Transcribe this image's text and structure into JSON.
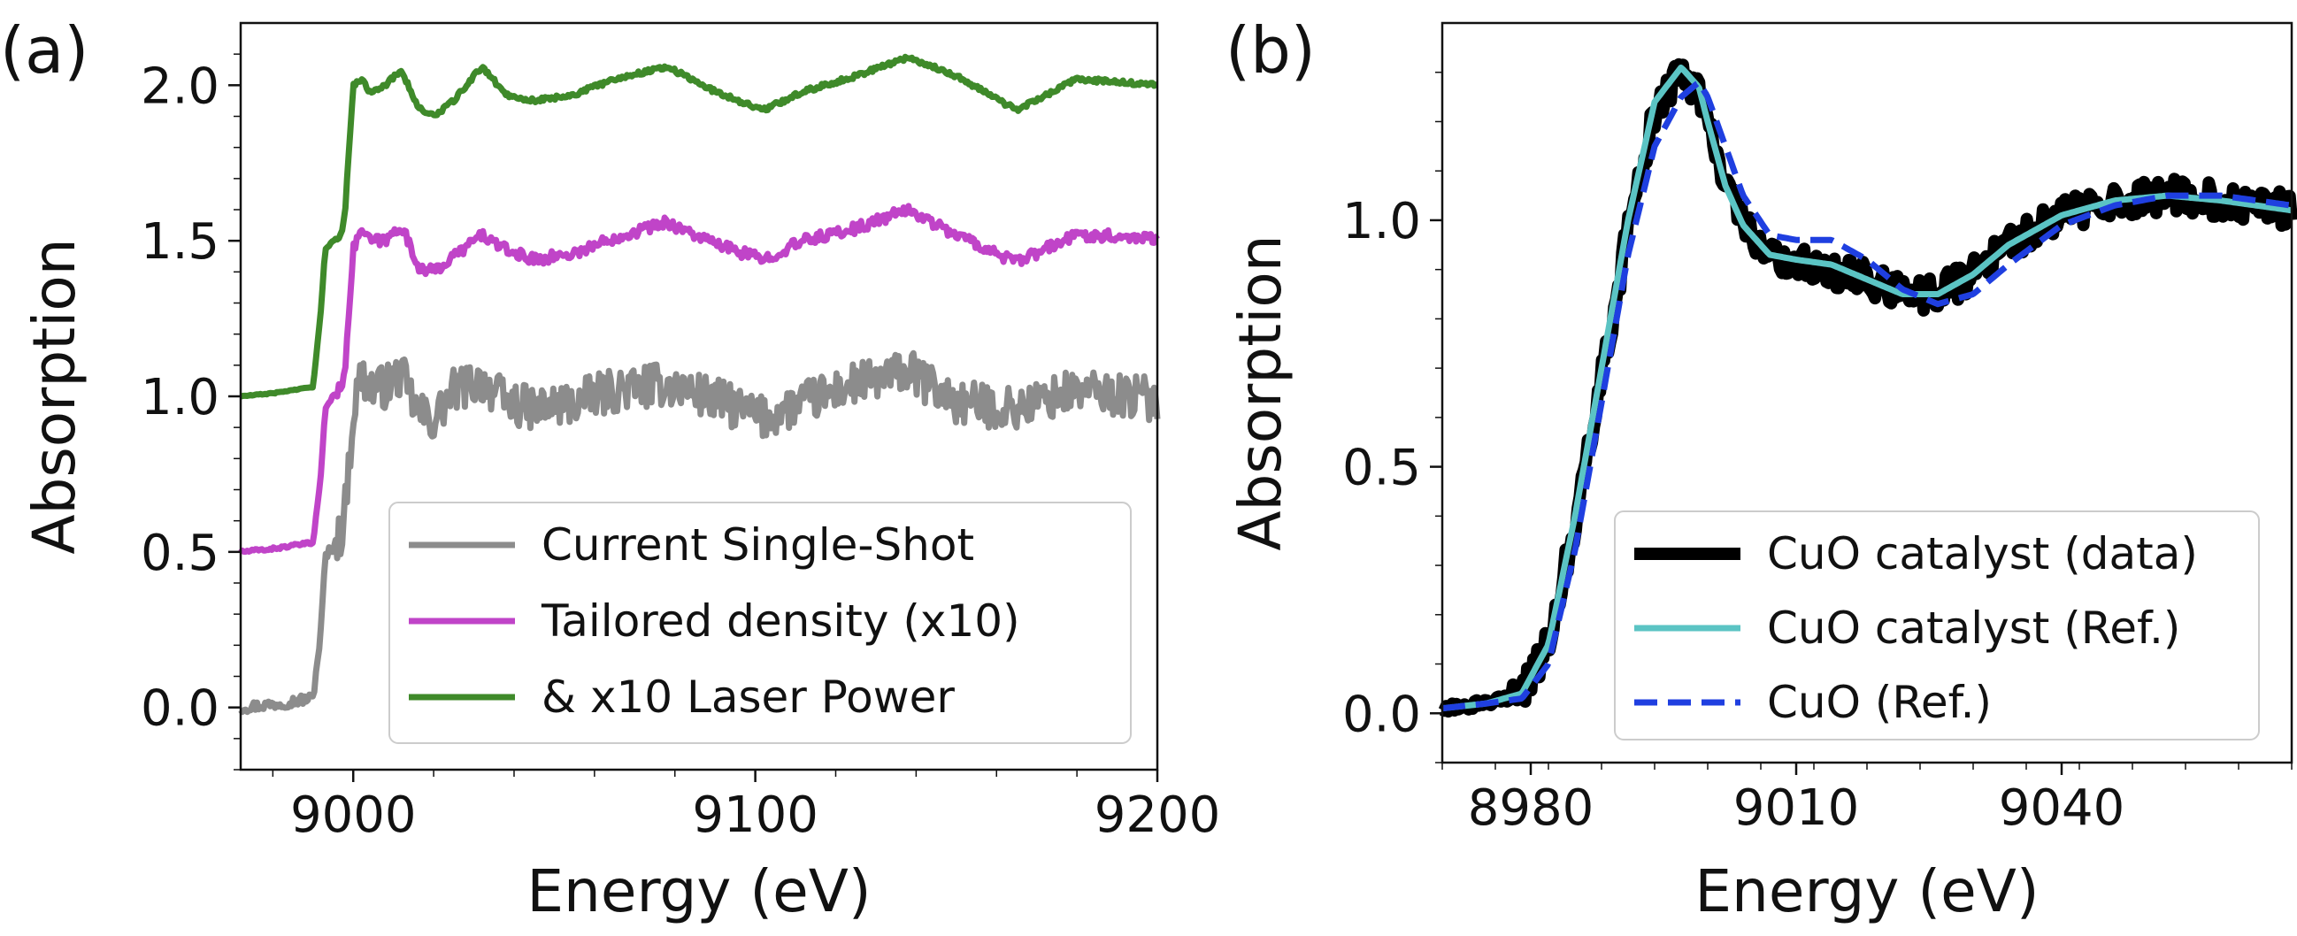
{
  "chart_data": [
    {
      "type": "line",
      "panel_label": "(a)",
      "xlabel": "Energy (eV)",
      "ylabel": "Absorption",
      "xlim": [
        8972,
        9200
      ],
      "ylim": [
        -0.2,
        2.2
      ],
      "xticks": [
        9000,
        9100,
        9200
      ],
      "xtick_labels": [
        "9000",
        "9100",
        "9200"
      ],
      "yticks": [
        0.0,
        0.5,
        1.0,
        1.5,
        2.0
      ],
      "ytick_labels": [
        "0.0",
        "0.5",
        "1.0",
        "1.5",
        "2.0"
      ],
      "legend_position": "lower-right",
      "colors": {
        "gray": "#8c8c8c",
        "magenta": "#c044c8",
        "green": "#3f8a2a"
      },
      "series": [
        {
          "name": "Current Single-Shot",
          "offset": 0.0,
          "noise": 0.07,
          "color": "#8c8c8c",
          "x": [
            8972,
            8980,
            8990,
            8992,
            8993,
            8995,
            8997,
            8998,
            9000,
            9002,
            9004,
            9008,
            9012,
            9016,
            9020,
            9025,
            9032,
            9038,
            9045,
            9055,
            9065,
            9078,
            9090,
            9102,
            9112,
            9125,
            9138,
            9150,
            9165,
            9180,
            9200
          ],
          "values": [
            0.0,
            0.01,
            0.03,
            0.25,
            0.48,
            0.52,
            0.56,
            0.64,
            0.95,
            1.07,
            1.03,
            1.03,
            1.07,
            0.95,
            0.92,
            1.02,
            1.05,
            0.98,
            0.96,
            0.98,
            1.02,
            1.04,
            0.99,
            0.93,
            0.98,
            1.04,
            1.08,
            0.98,
            0.96,
            1.02,
            0.99
          ]
        },
        {
          "name": "Tailored density (x10)",
          "offset": 0.5,
          "noise": 0.018,
          "color": "#c044c8",
          "x": [
            8972,
            8980,
            8990,
            8992,
            8993,
            8995,
            8997,
            8998,
            9000,
            9002,
            9004,
            9008,
            9012,
            9016,
            9020,
            9025,
            9032,
            9038,
            9045,
            9055,
            9065,
            9078,
            9090,
            9102,
            9112,
            9125,
            9138,
            9150,
            9165,
            9180,
            9200
          ],
          "values": [
            0.0,
            0.01,
            0.03,
            0.25,
            0.46,
            0.5,
            0.53,
            0.6,
            0.97,
            1.04,
            1.0,
            1.0,
            1.05,
            0.92,
            0.9,
            0.95,
            1.02,
            0.97,
            0.94,
            0.96,
            1.01,
            1.06,
            0.99,
            0.94,
            1.0,
            1.04,
            1.1,
            1.02,
            0.93,
            1.02,
            1.01
          ]
        },
        {
          "name": "& x10 Laser Power",
          "offset": 1.0,
          "noise": 0.007,
          "color": "#3f8a2a",
          "x": [
            8972,
            8980,
            8990,
            8992,
            8993,
            8995,
            8997,
            8998,
            9000,
            9002,
            9004,
            9008,
            9012,
            9016,
            9020,
            9025,
            9032,
            9038,
            9045,
            9055,
            9065,
            9078,
            9090,
            9102,
            9112,
            9125,
            9138,
            9150,
            9165,
            9180,
            9200
          ],
          "values": [
            0.0,
            0.01,
            0.03,
            0.28,
            0.47,
            0.5,
            0.52,
            0.6,
            1.0,
            1.02,
            0.98,
            1.0,
            1.05,
            0.93,
            0.9,
            0.95,
            1.06,
            0.97,
            0.95,
            0.97,
            1.02,
            1.06,
            0.98,
            0.92,
            0.98,
            1.03,
            1.09,
            1.03,
            0.92,
            1.02,
            1.0
          ]
        }
      ]
    },
    {
      "type": "line",
      "panel_label": "(b)",
      "xlabel": "Energy (eV)",
      "ylabel": "Absorption",
      "xlim": [
        8970,
        9066
      ],
      "ylim": [
        -0.1,
        1.4
      ],
      "xticks": [
        8980,
        9010,
        9040
      ],
      "xtick_labels": [
        "8980",
        "9010",
        "9040"
      ],
      "yticks": [
        0.0,
        0.5,
        1.0
      ],
      "ytick_labels": [
        "0.0",
        "0.5",
        "1.0"
      ],
      "legend_position": "lower-right",
      "colors": {
        "black": "#000000",
        "cyan": "#5bc4c4",
        "blue": "#1f3fe0"
      },
      "series": [
        {
          "name": "CuO catalyst (data)",
          "style": "solid-thick",
          "noise": 0.035,
          "color": "#000000",
          "x": [
            8970,
            8975,
            8979,
            8982,
            8985,
            8988,
            8991,
            8994,
            8997,
            8999,
            9000,
            9002,
            9004,
            9007,
            9010,
            9014,
            9018,
            9022,
            9026,
            9030,
            9034,
            9040,
            9046,
            9052,
            9058,
            9066
          ],
          "values": [
            0.01,
            0.02,
            0.04,
            0.14,
            0.39,
            0.68,
            0.98,
            1.22,
            1.3,
            1.26,
            1.2,
            1.07,
            0.99,
            0.93,
            0.91,
            0.9,
            0.88,
            0.85,
            0.85,
            0.89,
            0.95,
            1.01,
            1.04,
            1.05,
            1.04,
            1.02
          ]
        },
        {
          "name": "CuO catalyst (Ref.)",
          "style": "solid",
          "noise": 0,
          "color": "#5bc4c4",
          "x": [
            8970,
            8975,
            8979,
            8982,
            8985,
            8988,
            8991,
            8994,
            8997,
            8999,
            9000,
            9002,
            9004,
            9007,
            9010,
            9014,
            9018,
            9022,
            9026,
            9030,
            9034,
            9040,
            9046,
            9052,
            9058,
            9066
          ],
          "values": [
            0.01,
            0.02,
            0.04,
            0.14,
            0.4,
            0.7,
            1.0,
            1.24,
            1.31,
            1.27,
            1.2,
            1.07,
            0.99,
            0.93,
            0.92,
            0.91,
            0.88,
            0.85,
            0.85,
            0.89,
            0.95,
            1.01,
            1.04,
            1.05,
            1.04,
            1.02
          ]
        },
        {
          "name": "CuO (Ref.)",
          "style": "dashed",
          "noise": 0,
          "color": "#1f3fe0",
          "x": [
            8970,
            8975,
            8979,
            8982,
            8985,
            8988,
            8991,
            8994,
            8997,
            8999,
            9000,
            9002,
            9004,
            9007,
            9010,
            9014,
            9018,
            9022,
            9026,
            9030,
            9034,
            9040,
            9046,
            9052,
            9058,
            9066
          ],
          "values": [
            0.01,
            0.02,
            0.03,
            0.1,
            0.33,
            0.63,
            0.93,
            1.15,
            1.25,
            1.28,
            1.25,
            1.15,
            1.05,
            0.97,
            0.96,
            0.96,
            0.92,
            0.86,
            0.83,
            0.85,
            0.91,
            0.99,
            1.03,
            1.05,
            1.05,
            1.03
          ]
        }
      ]
    }
  ]
}
